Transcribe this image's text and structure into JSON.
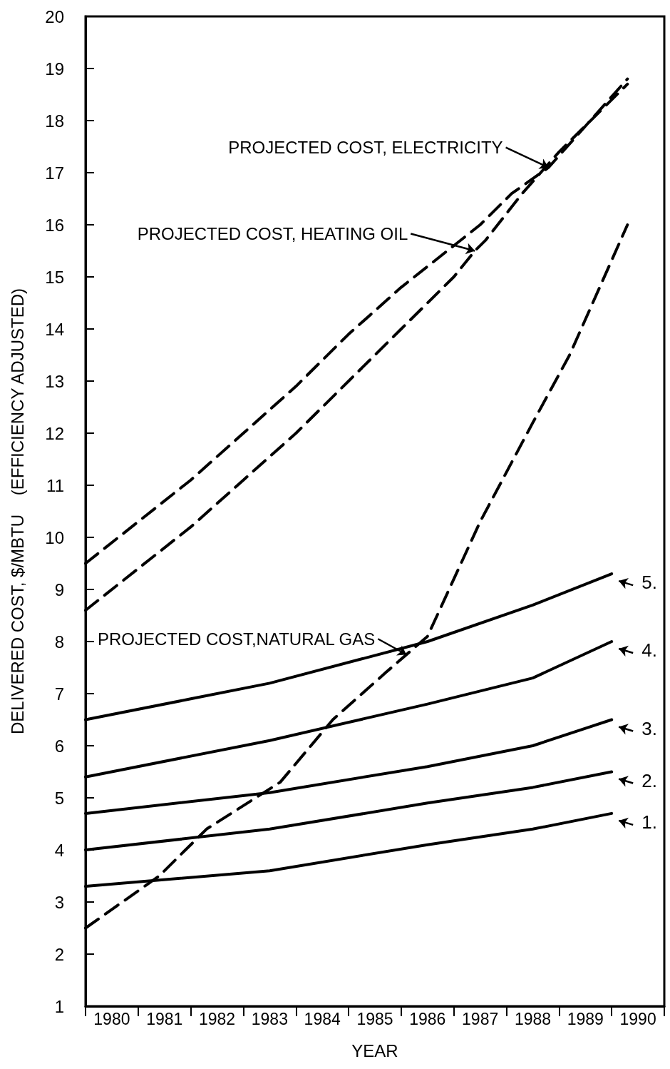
{
  "chart_data": {
    "type": "line",
    "xlabel": "YEAR",
    "ylabel": "DELIVERED COST, $/MBTU    (EFFICIENCY ADJUSTED)",
    "xlim": [
      1980,
      1991
    ],
    "xticks": [
      {
        "value": 1980,
        "label": null
      },
      {
        "value": 1980.5,
        "label": "1980"
      },
      {
        "value": 1981,
        "label": null
      },
      {
        "value": 1981.5,
        "label": "1981"
      },
      {
        "value": 1982,
        "label": null
      },
      {
        "value": 1982.5,
        "label": "1982"
      },
      {
        "value": 1983,
        "label": null
      },
      {
        "value": 1983.5,
        "label": "1983"
      },
      {
        "value": 1984,
        "label": null
      },
      {
        "value": 1984.5,
        "label": "1984"
      },
      {
        "value": 1985,
        "label": null
      },
      {
        "value": 1985.5,
        "label": "1985"
      },
      {
        "value": 1986,
        "label": null
      },
      {
        "value": 1986.5,
        "label": "1986"
      },
      {
        "value": 1987,
        "label": null
      },
      {
        "value": 1987.5,
        "label": "1987"
      },
      {
        "value": 1988,
        "label": null
      },
      {
        "value": 1988.5,
        "label": "1988"
      },
      {
        "value": 1989,
        "label": null
      },
      {
        "value": 1989.5,
        "label": "1989"
      },
      {
        "value": 1990,
        "label": null
      },
      {
        "value": 1990.5,
        "label": "1990"
      },
      {
        "value": 1991,
        "label": null
      }
    ],
    "ylim": [
      1,
      20
    ],
    "yticks": [
      1,
      2,
      3,
      4,
      5,
      6,
      7,
      8,
      9,
      10,
      11,
      12,
      13,
      14,
      15,
      16,
      17,
      18,
      19,
      20
    ],
    "grid": false,
    "legend": "right",
    "marker": "none",
    "series": [
      {
        "color": "#000000",
        "line_style": "dashed",
        "x": [
          1980,
          1981,
          1982,
          1983,
          1984,
          1985,
          1986,
          1987,
          1987.5,
          1988.1,
          1988.8,
          1990.3
        ],
        "values": [
          9.5,
          10.3,
          11.1,
          12,
          12.9,
          13.9,
          14.8,
          15.6,
          16,
          16.6,
          17.1,
          18.8
        ]
      },
      {
        "color": "#000000",
        "line_style": "dashed",
        "x": [
          1980,
          1981,
          1982,
          1983,
          1984,
          1985,
          1986,
          1987,
          1987.4,
          1987.6,
          1988.3,
          1989,
          1990.3
        ],
        "values": [
          8.6,
          9.4,
          10.2,
          11.1,
          12,
          13,
          14,
          15,
          15.5,
          15.7,
          16.6,
          17.4,
          18.7
        ]
      },
      {
        "color": "#000000",
        "line_style": "dashed",
        "x": [
          1980,
          1981.4,
          1982.3,
          1983.7,
          1984.7,
          1985.7,
          1986.5,
          1987.5,
          1988.5,
          1989.2,
          1990.3
        ],
        "values": [
          2.5,
          3.5,
          4.4,
          5.3,
          6.5,
          7.4,
          8.1,
          10.3,
          12.2,
          13.5,
          16
        ]
      },
      {
        "name": "5.",
        "color": "#000000",
        "line_style": "solid",
        "x": [
          1980,
          1982,
          1983.5,
          1986.5,
          1988.5,
          1990
        ],
        "values": [
          6.5,
          6.9,
          7.2,
          8,
          8.7,
          9.3
        ]
      },
      {
        "name": "4.",
        "color": "#000000",
        "line_style": "solid",
        "x": [
          1980,
          1983.5,
          1986.5,
          1988.5,
          1990
        ],
        "values": [
          5.4,
          6.1,
          6.8,
          7.3,
          8
        ]
      },
      {
        "name": "3.",
        "color": "#000000",
        "line_style": "solid",
        "x": [
          1980,
          1983.5,
          1986.5,
          1988.5,
          1990
        ],
        "values": [
          4.7,
          5.1,
          5.6,
          6,
          6.5
        ]
      },
      {
        "name": "2.",
        "color": "#000000",
        "line_style": "solid",
        "x": [
          1980,
          1983.5,
          1986.5,
          1988.5,
          1990
        ],
        "values": [
          4,
          4.4,
          4.9,
          5.2,
          5.5
        ]
      },
      {
        "name": "1.",
        "color": "#000000",
        "line_style": "solid",
        "x": [
          1980,
          1983.5,
          1986.5,
          1988.5,
          1990
        ],
        "values": [
          3.3,
          3.6,
          4.1,
          4.4,
          4.7
        ]
      }
    ],
    "annotations": [
      {
        "text": "PROJECTED COST, ELECTRICITY",
        "x": 1988.8,
        "y": 17.1
      },
      {
        "text": "PROJECTED COST, HEATING OIL",
        "x": 1987.4,
        "y": 15.5
      },
      {
        "text": "PROJECTED COST,NATURAL GAS",
        "x": 1986.1,
        "y": 7.75
      }
    ]
  }
}
